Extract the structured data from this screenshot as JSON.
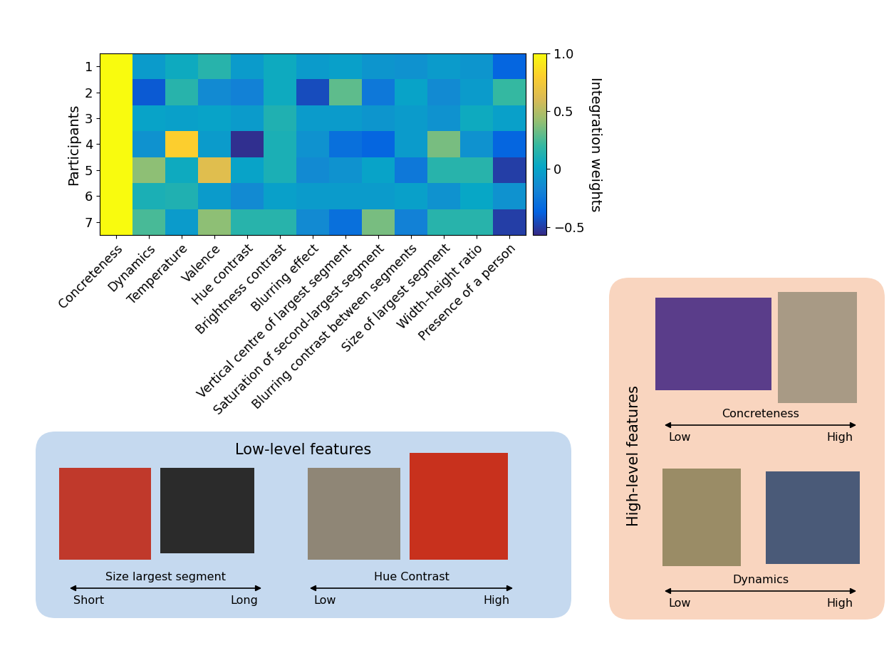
{
  "chart_data": {
    "type": "heatmap",
    "categories": [
      "Concreteness",
      "Dynamics",
      "Temperature",
      "Valence",
      "Hue contrast",
      "Brightness contrast",
      "Blurring effect",
      "Vertical centre of largest segment",
      "Saturation of second-largest segment",
      "Blurring contrast between segments",
      "Size of largest segment",
      "Width–height ratio",
      "Presence of a person"
    ],
    "ylabel": "Participants",
    "ylim": [
      7.5,
      0.5
    ],
    "yticks": [
      1,
      2,
      3,
      4,
      5,
      6,
      7
    ],
    "cells": [
      [
        1.0,
        -0.05,
        0.05,
        0.15,
        -0.05,
        0.05,
        -0.05,
        -0.02,
        -0.08,
        -0.1,
        -0.05,
        -0.08,
        -0.35
      ],
      [
        1.0,
        -0.4,
        0.15,
        -0.15,
        -0.2,
        0.05,
        -0.45,
        0.3,
        -0.25,
        0.0,
        -0.15,
        -0.05,
        0.2
      ],
      [
        1.0,
        0.0,
        -0.02,
        0.0,
        -0.05,
        0.12,
        -0.05,
        -0.05,
        -0.08,
        -0.05,
        -0.1,
        0.05,
        -0.02
      ],
      [
        1.0,
        -0.1,
        0.8,
        -0.05,
        -0.55,
        0.1,
        -0.1,
        -0.3,
        -0.35,
        -0.05,
        0.35,
        -0.1,
        -0.35
      ],
      [
        1.0,
        0.4,
        0.05,
        0.65,
        0.0,
        0.1,
        -0.15,
        -0.1,
        0.0,
        -0.25,
        0.15,
        0.15,
        -0.5
      ],
      [
        1.0,
        0.1,
        0.12,
        -0.05,
        -0.15,
        -0.02,
        -0.05,
        -0.05,
        -0.05,
        -0.02,
        -0.1,
        0.02,
        -0.1
      ],
      [
        1.0,
        0.25,
        -0.05,
        0.4,
        0.15,
        0.15,
        -0.15,
        -0.3,
        0.35,
        -0.2,
        0.15,
        0.15,
        -0.5
      ]
    ],
    "colorbar_label": "Integration weights",
    "colorbar_range": [
      -0.57,
      1.0
    ],
    "colorbar_ticks": [
      {
        "value": 1.0,
        "label": "1.0"
      },
      0.5,
      0,
      {
        "value": -0.5,
        "label": "−0.5"
      }
    ]
  },
  "panels": [
    {
      "title": "Low-level features",
      "scales": [
        {
          "label": "Size largest segment",
          "low": "Short",
          "high": "Long"
        },
        {
          "label": "Hue Contrast",
          "low": "Low",
          "high": "High"
        }
      ]
    },
    {
      "title": "High-level features",
      "scales": [
        {
          "label": "Concreteness",
          "low": "Low",
          "high": "High"
        },
        {
          "label": "Dynamics",
          "low": "Low",
          "high": "High"
        }
      ]
    }
  ]
}
